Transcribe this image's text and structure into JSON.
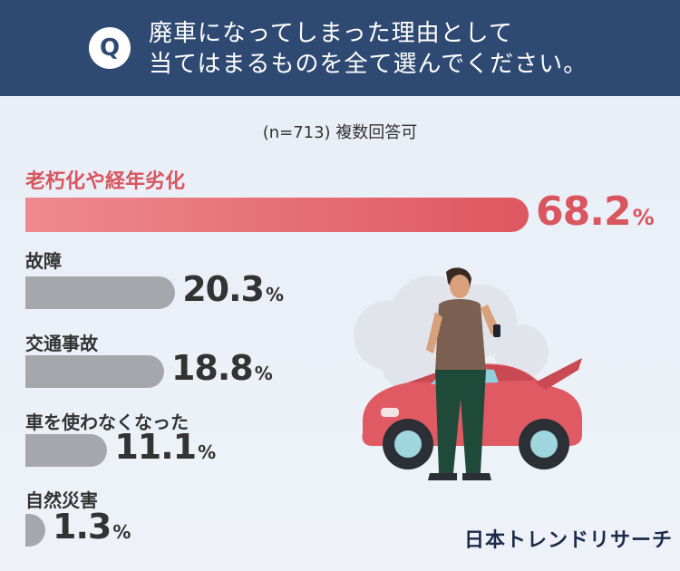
{
  "question": {
    "badge": "Q",
    "line1": "廃車になってしまった理由として",
    "line2": "当てはまるものを全て選んでください。"
  },
  "sample_note": "(n=713) 複数回答可",
  "brand": "日本トレンドリサーチ",
  "colors": {
    "header": "#2f4a72",
    "highlight": "#d9555f",
    "bar": "#a5a7ad"
  },
  "chart_data": {
    "type": "bar",
    "orientation": "horizontal",
    "title": "",
    "unit": "%",
    "categories": [
      "老朽化や経年劣化",
      "故障",
      "交通事故",
      "車を使わなくなった",
      "自然災害"
    ],
    "values": [
      68.2,
      20.3,
      18.8,
      11.1,
      1.3
    ],
    "value_labels": [
      "68.2",
      "20.3",
      "18.8",
      "11.1",
      "1.3"
    ],
    "xlim": [
      0,
      68.2
    ],
    "highlight_index": 0,
    "legend": "none",
    "grid": false
  }
}
